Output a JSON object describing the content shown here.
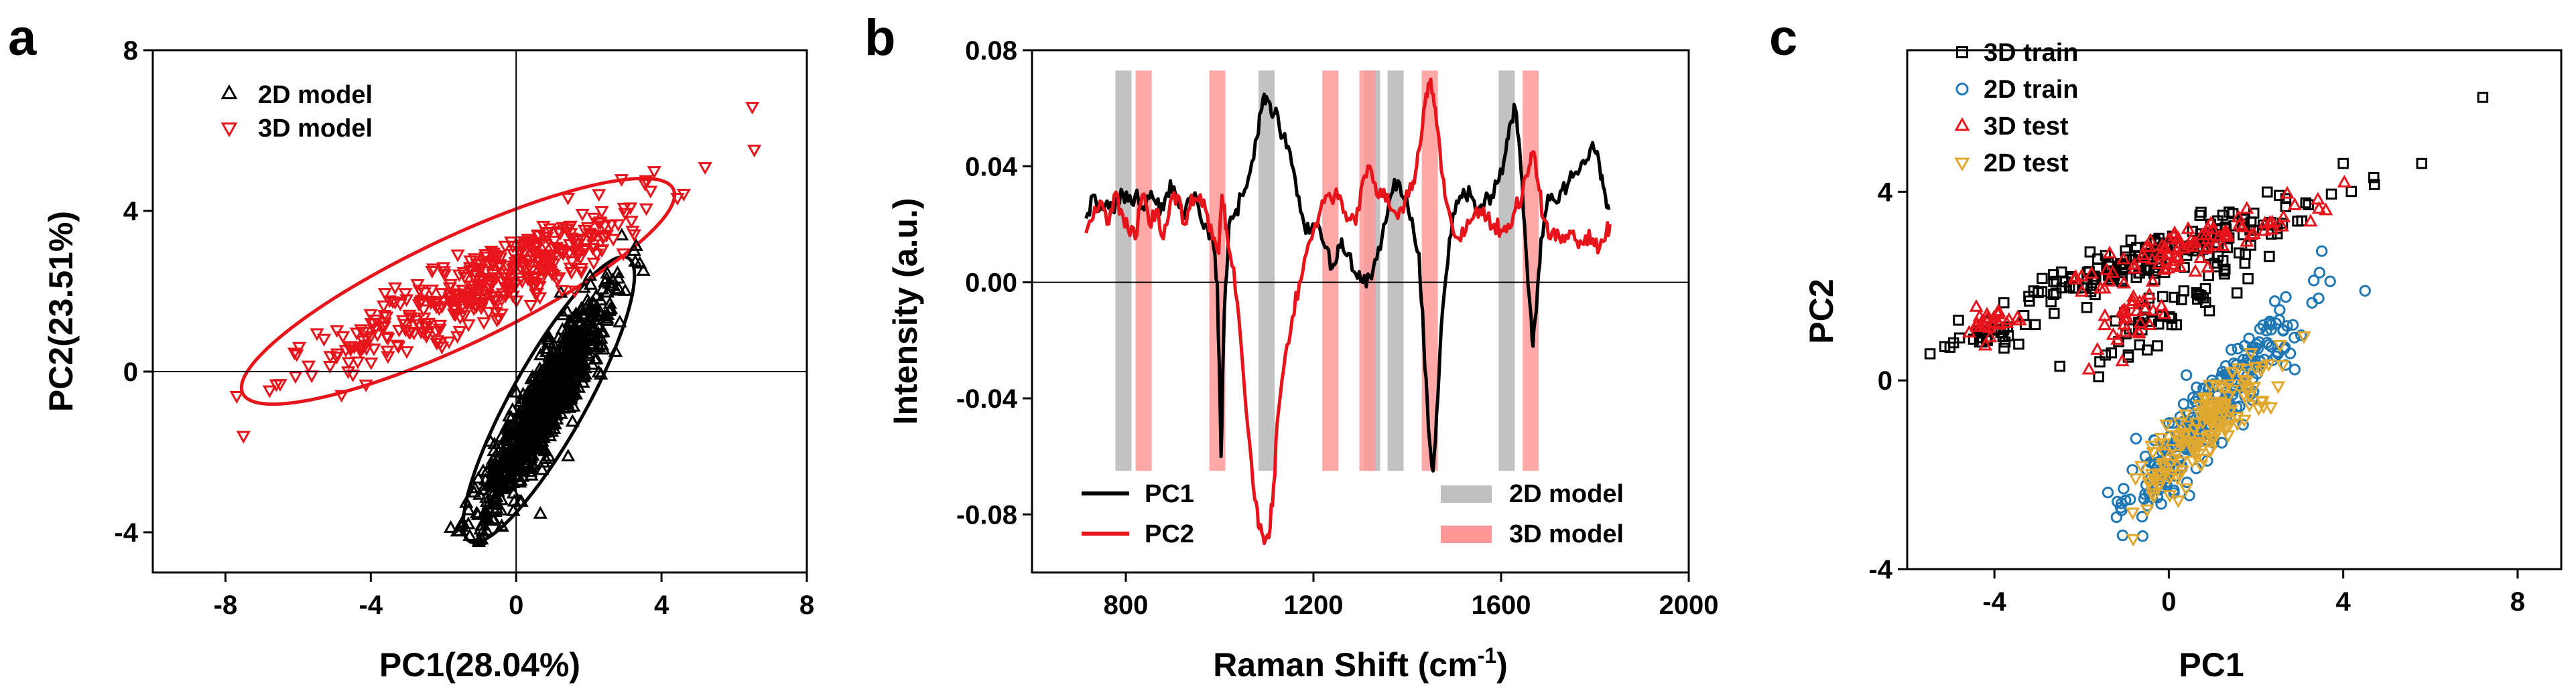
{
  "panels": [
    "a",
    "b",
    "c"
  ],
  "chart_data": [
    {
      "panel": "a",
      "type": "scatter",
      "title": "",
      "xlabel": "PC1(28.04%)",
      "ylabel": "PC2(23.51%)",
      "xlim": [
        -10,
        8
      ],
      "ylim": [
        -5,
        8
      ],
      "xticks": [
        -8,
        -4,
        0,
        4,
        8
      ],
      "yticks": [
        -4,
        0,
        4,
        8
      ],
      "grid": false,
      "zero_lines": true,
      "legend": "top-left",
      "series": [
        {
          "name": "2D model",
          "marker": "triangle-up",
          "color": "#000000",
          "cluster": {
            "center": [
              0.8,
              -0.8
            ],
            "angle_deg": 58,
            "sd_major": 1.55,
            "sd_minor": 0.32,
            "count": 900
          },
          "points": [
            [
              2.5,
              2.3
            ],
            [
              3.5,
              2.5
            ],
            [
              3.0,
              2.0
            ],
            [
              -1.8,
              -3.9
            ],
            [
              -0.5,
              -3.0
            ]
          ],
          "ellipse": {
            "center": [
              0.9,
              -0.7
            ],
            "semi_major": 4.15,
            "semi_minor": 1.0,
            "angle_deg": 58
          }
        },
        {
          "name": "3D model",
          "marker": "triangle-down",
          "color": "#e8141b",
          "cluster": {
            "center": [
              -0.6,
              2.3
            ],
            "angle_deg": 23,
            "sd_major": 2.45,
            "sd_minor": 0.42,
            "count": 420
          },
          "points": [
            [
              6.5,
              6.6
            ],
            [
              5.2,
              5.1
            ],
            [
              3.8,
              5.0
            ],
            [
              2.9,
              4.8
            ]
          ],
          "ellipse": {
            "center": [
              -1.6,
              2.0
            ],
            "semi_major": 6.45,
            "semi_minor": 1.35,
            "angle_deg": 23
          }
        }
      ]
    },
    {
      "panel": "b",
      "type": "line",
      "title": "",
      "xlabel": "Raman Shift (cm",
      "xlabel_superscript": "-1",
      "xlabel_suffix": ")",
      "ylabel": "Intensity (a.u.)",
      "xlim": [
        600,
        2000
      ],
      "ylim": [
        -0.1,
        0.08
      ],
      "xticks": [
        800,
        1200,
        1600,
        2000
      ],
      "yticks": [
        "-0.08",
        "-0.04",
        "0.00",
        "0.04",
        "0.08"
      ],
      "ytick_values": [
        -0.08,
        -0.04,
        0.0,
        0.04,
        0.08
      ],
      "grid": false,
      "zero_line": true,
      "legend": "bottom",
      "series": [
        {
          "name": "PC1",
          "color": "#000000",
          "x": [
            715,
            730,
            745,
            760,
            775,
            790,
            805,
            820,
            835,
            850,
            865,
            880,
            895,
            910,
            925,
            940,
            955,
            970,
            985,
            995,
            1003,
            1010,
            1020,
            1035,
            1050,
            1065,
            1080,
            1090,
            1100,
            1110,
            1120,
            1135,
            1150,
            1165,
            1180,
            1195,
            1210,
            1225,
            1240,
            1250,
            1260,
            1275,
            1290,
            1305,
            1320,
            1335,
            1350,
            1365,
            1380,
            1395,
            1410,
            1425,
            1435,
            1445,
            1455,
            1465,
            1475,
            1490,
            1505,
            1520,
            1535,
            1550,
            1565,
            1580,
            1595,
            1610,
            1620,
            1630,
            1640,
            1650,
            1660,
            1668,
            1675,
            1685,
            1700,
            1715,
            1730,
            1745,
            1760,
            1775,
            1790,
            1800,
            1810,
            1820,
            1830
          ],
          "values": [
            0.022,
            0.03,
            0.025,
            0.028,
            0.024,
            0.032,
            0.028,
            0.03,
            0.026,
            0.029,
            0.027,
            0.025,
            0.035,
            0.028,
            0.022,
            0.03,
            0.026,
            0.02,
            0.015,
            0.0,
            -0.06,
            -0.01,
            0.02,
            0.025,
            0.03,
            0.038,
            0.05,
            0.06,
            0.064,
            0.058,
            0.06,
            0.05,
            0.045,
            0.03,
            0.02,
            0.018,
            0.02,
            0.012,
            0.005,
            0.008,
            0.015,
            0.01,
            0.003,
            0.0,
            0.002,
            0.008,
            0.02,
            0.03,
            0.035,
            0.028,
            0.022,
            0.01,
            -0.02,
            -0.05,
            -0.065,
            -0.04,
            -0.01,
            0.015,
            0.028,
            0.032,
            0.03,
            0.025,
            0.028,
            0.03,
            0.035,
            0.045,
            0.055,
            0.06,
            0.045,
            0.02,
            -0.005,
            -0.022,
            -0.01,
            0.015,
            0.03,
            0.028,
            0.032,
            0.035,
            0.038,
            0.042,
            0.046,
            0.045,
            0.04,
            0.032,
            0.025
          ]
        },
        {
          "name": "PC2",
          "color": "#e8141b",
          "x": [
            715,
            730,
            745,
            760,
            775,
            790,
            805,
            820,
            835,
            850,
            865,
            880,
            895,
            910,
            925,
            940,
            955,
            970,
            985,
            998,
            1005,
            1015,
            1030,
            1045,
            1060,
            1075,
            1085,
            1095,
            1105,
            1115,
            1125,
            1140,
            1155,
            1170,
            1185,
            1200,
            1215,
            1230,
            1245,
            1260,
            1275,
            1290,
            1305,
            1320,
            1335,
            1350,
            1365,
            1380,
            1395,
            1410,
            1420,
            1430,
            1440,
            1450,
            1460,
            1470,
            1480,
            1495,
            1510,
            1525,
            1540,
            1555,
            1570,
            1585,
            1600,
            1615,
            1630,
            1645,
            1660,
            1668,
            1678,
            1690,
            1705,
            1720,
            1735,
            1750,
            1765,
            1780,
            1795,
            1810,
            1825,
            1832
          ],
          "values": [
            0.017,
            0.022,
            0.028,
            0.02,
            0.03,
            0.025,
            0.018,
            0.015,
            0.03,
            0.02,
            0.025,
            0.015,
            0.028,
            0.03,
            0.02,
            0.03,
            0.028,
            0.025,
            0.015,
            0.01,
            0.03,
            0.018,
            0.005,
            -0.02,
            -0.05,
            -0.075,
            -0.085,
            -0.09,
            -0.088,
            -0.07,
            -0.045,
            -0.025,
            -0.012,
            0.0,
            0.01,
            0.018,
            0.025,
            0.03,
            0.03,
            0.028,
            0.022,
            0.02,
            0.035,
            0.04,
            0.03,
            0.032,
            0.025,
            0.022,
            0.028,
            0.032,
            0.04,
            0.05,
            0.065,
            0.07,
            0.06,
            0.045,
            0.03,
            0.02,
            0.015,
            0.018,
            0.022,
            0.025,
            0.022,
            0.02,
            0.018,
            0.02,
            0.025,
            0.03,
            0.04,
            0.045,
            0.035,
            0.022,
            0.015,
            0.018,
            0.014,
            0.017,
            0.012,
            0.016,
            0.015,
            0.012,
            0.018,
            0.02
          ]
        }
      ],
      "bands": [
        {
          "name": "2D model",
          "color": "#bfbfbf",
          "opacity": 0.95,
          "centers": [
            795,
            1100,
            1325,
            1375,
            1612
          ],
          "ymin": -0.065,
          "ymax": 0.073,
          "width": 24
        },
        {
          "name": "3D model",
          "color": "#ff9999",
          "opacity": 0.85,
          "centers": [
            838,
            995,
            1236,
            1315,
            1448,
            1663
          ],
          "ymin": -0.065,
          "ymax": 0.073,
          "width": 24
        }
      ]
    },
    {
      "panel": "c",
      "type": "scatter",
      "title": "",
      "xlabel": "PC1",
      "ylabel": "PC2",
      "xlim": [
        -6,
        9
      ],
      "ylim": [
        -4,
        7
      ],
      "xticks": [
        -4,
        0,
        4,
        8
      ],
      "yticks": [
        -4,
        0,
        4
      ],
      "grid": false,
      "legend": "top-left",
      "series": [
        {
          "name": "3D train",
          "marker": "square",
          "color": "#000000",
          "clusters": [
            {
              "center": [
                -0.1,
                2.7
              ],
              "angle_deg": 17,
              "sd_major": 1.75,
              "sd_minor": 0.22,
              "count": 170
            },
            {
              "center": [
                0.0,
                1.5
              ],
              "angle_deg": 30,
              "sd_major": 1.2,
              "sd_minor": 0.25,
              "count": 55
            },
            {
              "center": [
                -4.2,
                1.0
              ],
              "angle_deg": 17,
              "sd_major": 0.45,
              "sd_minor": 0.18,
              "count": 30
            }
          ],
          "points": [
            [
              7.2,
              6.0
            ],
            [
              5.8,
              4.6
            ],
            [
              4.7,
              4.3
            ],
            [
              4.0,
              4.6
            ],
            [
              -4.8,
              0.9
            ],
            [
              -2.5,
              0.3
            ]
          ]
        },
        {
          "name": "2D train",
          "marker": "circle",
          "color": "#1f77b4",
          "clusters": [
            {
              "center": [
                1.0,
                -0.6
              ],
              "angle_deg": 48,
              "sd_major": 1.45,
              "sd_minor": 0.32,
              "count": 240
            }
          ],
          "points": [
            [
              3.7,
              2.1
            ],
            [
              4.5,
              1.9
            ],
            [
              -0.6,
              -3.3
            ],
            [
              -1.2,
              -2.9
            ]
          ]
        },
        {
          "name": "3D test",
          "marker": "triangle-up",
          "color": "#e8141b",
          "clusters": [
            {
              "center": [
                0.6,
                2.9
              ],
              "angle_deg": 17,
              "sd_major": 1.5,
              "sd_minor": 0.2,
              "count": 90
            },
            {
              "center": [
                -1.0,
                1.2
              ],
              "angle_deg": 30,
              "sd_major": 0.7,
              "sd_minor": 0.25,
              "count": 30
            },
            {
              "center": [
                -4.1,
                1.2
              ],
              "angle_deg": 17,
              "sd_major": 0.45,
              "sd_minor": 0.18,
              "count": 25
            }
          ],
          "points": [
            [
              3.6,
              3.6
            ],
            [
              -2.0,
              2.2
            ]
          ]
        },
        {
          "name": "2D test",
          "marker": "triangle-down",
          "color": "#e0a82e",
          "clusters": [
            {
              "center": [
                0.9,
                -0.9
              ],
              "angle_deg": 45,
              "sd_major": 1.1,
              "sd_minor": 0.3,
              "count": 160
            }
          ],
          "points": []
        }
      ]
    }
  ]
}
